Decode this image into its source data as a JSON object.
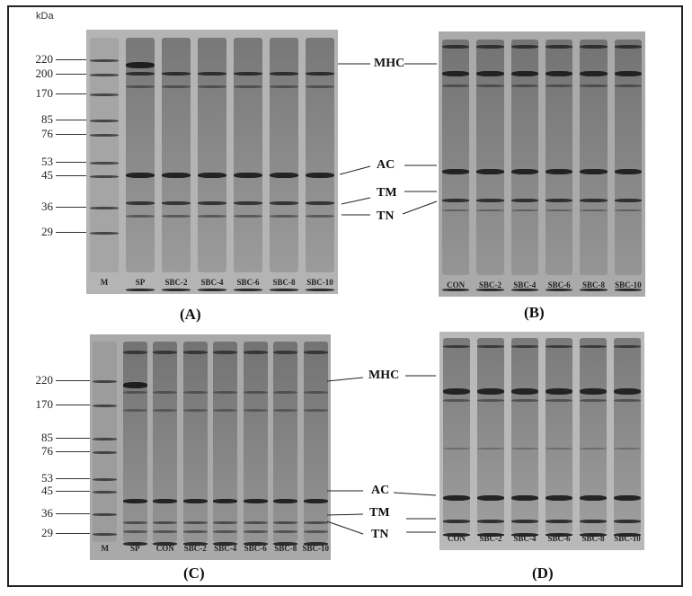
{
  "unit_label": "kDa",
  "panels": [
    {
      "id": "A",
      "label": "(A)",
      "lanes": [
        "M",
        "SP",
        "SBC-2",
        "SBC-4",
        "SBC-6",
        "SBC-8",
        "SBC-10"
      ],
      "markers": [
        "220",
        "200",
        "170",
        "85",
        "76",
        "53",
        "45",
        "36",
        "29"
      ],
      "proteins": [
        "MHC",
        "AC",
        "TM",
        "TN"
      ]
    },
    {
      "id": "B",
      "label": "(B)",
      "lanes": [
        "CON",
        "SBC-2",
        "SBC-4",
        "SBC-6",
        "SBC-8",
        "SBC-10"
      ]
    },
    {
      "id": "C",
      "label": "(C)",
      "lanes": [
        "M",
        "SP",
        "CON",
        "SBC-2",
        "SBC-4",
        "SBC-6",
        "SBC-8",
        "SBC-10"
      ],
      "markers": [
        "220",
        "170",
        "85",
        "76",
        "53",
        "45",
        "36",
        "29"
      ],
      "proteins": [
        "MHC",
        "AC",
        "TM",
        "TN"
      ]
    },
    {
      "id": "D",
      "label": "(D)",
      "lanes": [
        "CON",
        "SBC-2",
        "SBC-4",
        "SBC-6",
        "SBC-8",
        "SBC-10"
      ]
    }
  ]
}
